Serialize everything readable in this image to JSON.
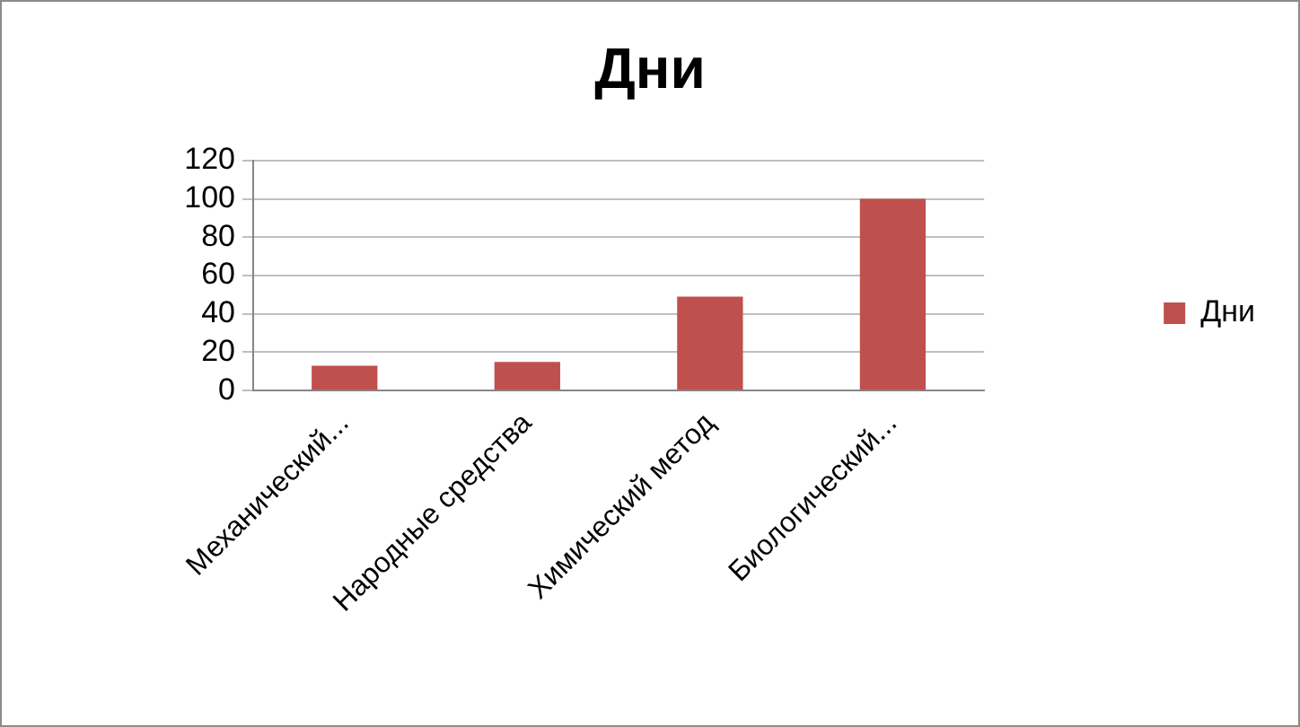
{
  "chart_data": {
    "type": "bar",
    "title": "Дни",
    "categories": [
      "Механический...",
      "Народные средства",
      "Химический метод",
      "Биологический..."
    ],
    "series": [
      {
        "name": "Дни",
        "color": "#c0504d",
        "values": [
          13,
          15,
          49,
          100
        ]
      }
    ],
    "ylim": [
      0,
      120
    ],
    "yticks": [
      0,
      20,
      40,
      60,
      80,
      100,
      120
    ],
    "grid": "y",
    "legend": "right"
  }
}
